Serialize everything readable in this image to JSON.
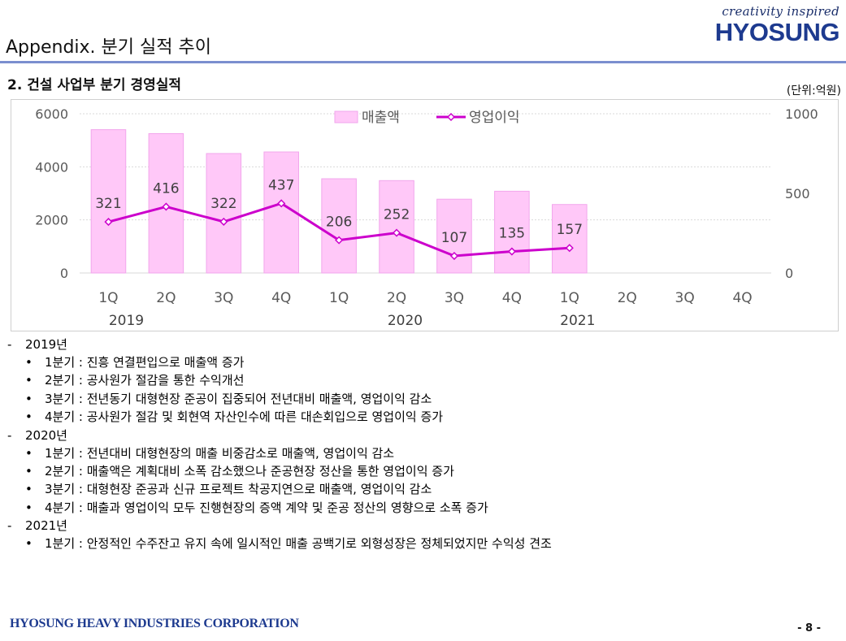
{
  "header": {
    "tagline": "creativity inspired",
    "brand": "HYOSUNG",
    "page_title": "Appendix. 분기 실적 추이"
  },
  "section": {
    "title": "2. 건설 사업부 분기 경영실적",
    "unit": "(단위:억원)"
  },
  "chart_data": {
    "type": "bar",
    "categories": [
      "1Q",
      "2Q",
      "3Q",
      "4Q",
      "1Q",
      "2Q",
      "3Q",
      "4Q",
      "1Q",
      "2Q",
      "3Q",
      "4Q"
    ],
    "years": [
      {
        "label": "2019",
        "from": 0,
        "to": 3
      },
      {
        "label": "2020",
        "from": 4,
        "to": 7
      },
      {
        "label": "2021",
        "from": 8,
        "to": 11
      }
    ],
    "series": [
      {
        "name": "매출액",
        "type": "bar",
        "axis": "left",
        "color": "#ffc8f8",
        "values": [
          5400,
          5250,
          4500,
          4560,
          3550,
          3480,
          2780,
          3080,
          2580,
          null,
          null,
          null
        ]
      },
      {
        "name": "영업이익",
        "type": "line",
        "axis": "right",
        "color": "#cc00cc",
        "values": [
          321,
          416,
          322,
          437,
          206,
          252,
          107,
          135,
          157,
          null,
          null,
          null
        ]
      }
    ],
    "left_axis": {
      "range": [
        0,
        6000
      ],
      "ticks": [
        0,
        2000,
        4000,
        6000
      ],
      "tick_labels": [
        "0",
        "2000",
        "4000",
        "6000"
      ]
    },
    "right_axis": {
      "range": [
        0,
        1000
      ],
      "ticks": [
        0,
        500,
        1000
      ],
      "tick_labels": [
        "0",
        "500",
        "1000"
      ]
    },
    "legend": {
      "position": "top-center",
      "items": [
        "매출액",
        "영업이익"
      ]
    },
    "gridlines": true
  },
  "notes": [
    {
      "year": "2019년",
      "items": [
        "1분기 : 진흥 연결편입으로 매출액 증가",
        "2분기 : 공사원가 절감을 통한 수익개선",
        "3분기 : 전년동기 대형현장 준공이 집중되어 전년대비 매출액, 영업이익 감소",
        "4분기 : 공사원가 절감 및 회현역 자산인수에 따른 대손회입으로 영업이익 증가"
      ]
    },
    {
      "year": "2020년",
      "items": [
        "1분기 : 전년대비 대형현장의 매출 비중감소로 매출액, 영업이익 감소",
        "2분기 : 매출액은 계획대비 소폭 감소했으나 준공현장 정산을 통한 영업이익 증가",
        "3분기 : 대형현장 준공과 신규 프로젝트 착공지연으로 매출액, 영업이익 감소",
        "4분기 : 매출과 영업이익 모두 진행현장의 증액 계약 및 준공 정산의 영향으로 소폭 증가"
      ]
    },
    {
      "year": "2021년",
      "items": [
        "1분기 : 안정적인 수주잔고 유지 속에 일시적인 매출 공백기로 외형성장은 정체되었지만 수익성 견조"
      ]
    }
  ],
  "footer": {
    "corporation": "HYOSUNG HEAVY INDUSTRIES CORPORATION",
    "page_number": "- 8 -"
  }
}
